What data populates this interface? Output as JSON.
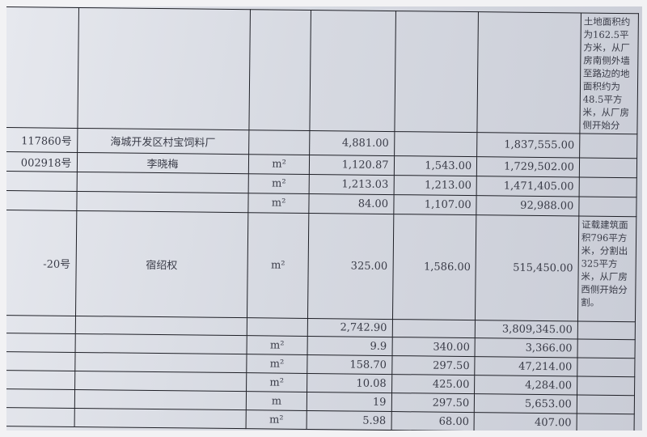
{
  "rows": [
    {
      "id": "",
      "name": "",
      "unit": "",
      "qty": "",
      "price": "",
      "amount": "",
      "remark": "土地面积约为162.5平方米，从厂房南侧外墙至路边的地面积约为48.5平方米，从厂房侧开始分"
    },
    {
      "id": "117860号",
      "name": "海城开发区村宝饲料厂",
      "unit": "",
      "qty": "4,881.00",
      "price": "",
      "amount": "1,837,555.00",
      "remark": ""
    },
    {
      "id": "002918号",
      "name": "李晓梅",
      "unit": "m²",
      "qty": "1,120.87",
      "price": "1,543.00",
      "amount": "1,729,502.00",
      "remark": ""
    },
    {
      "id": "",
      "name": "",
      "unit": "m²",
      "qty": "1,213.03",
      "price": "1,213.00",
      "amount": "1,471,405.00",
      "remark": ""
    },
    {
      "id": "",
      "name": "",
      "unit": "m²",
      "qty": "84.00",
      "price": "1,107.00",
      "amount": "92,988.00",
      "remark": ""
    },
    {
      "id": "-20号",
      "name": "宿绍权",
      "unit": "m²",
      "qty": "325.00",
      "price": "1,586.00",
      "amount": "515,450.00",
      "remark": "证载建筑面积796平方米，分割出325平方米，从厂房西侧开始分割。"
    },
    {
      "id": "",
      "name": "",
      "unit": "",
      "qty": "2,742.90",
      "price": "",
      "amount": "3,809,345.00",
      "remark": ""
    },
    {
      "id": "",
      "name": "",
      "unit": "m²",
      "qty": "9.9",
      "price": "340.00",
      "amount": "3,366.00",
      "remark": ""
    },
    {
      "id": "",
      "name": "",
      "unit": "m²",
      "qty": "158.70",
      "price": "297.50",
      "amount": "47,214.00",
      "remark": ""
    },
    {
      "id": "",
      "name": "",
      "unit": "m²",
      "qty": "10.08",
      "price": "425.00",
      "amount": "4,284.00",
      "remark": ""
    },
    {
      "id": "",
      "name": "",
      "unit": "m",
      "qty": "19",
      "price": "297.50",
      "amount": "5,653.00",
      "remark": ""
    },
    {
      "id": "",
      "name": "",
      "unit": "m²",
      "qty": "5.98",
      "price": "68.00",
      "amount": "407.00",
      "remark": ""
    }
  ]
}
